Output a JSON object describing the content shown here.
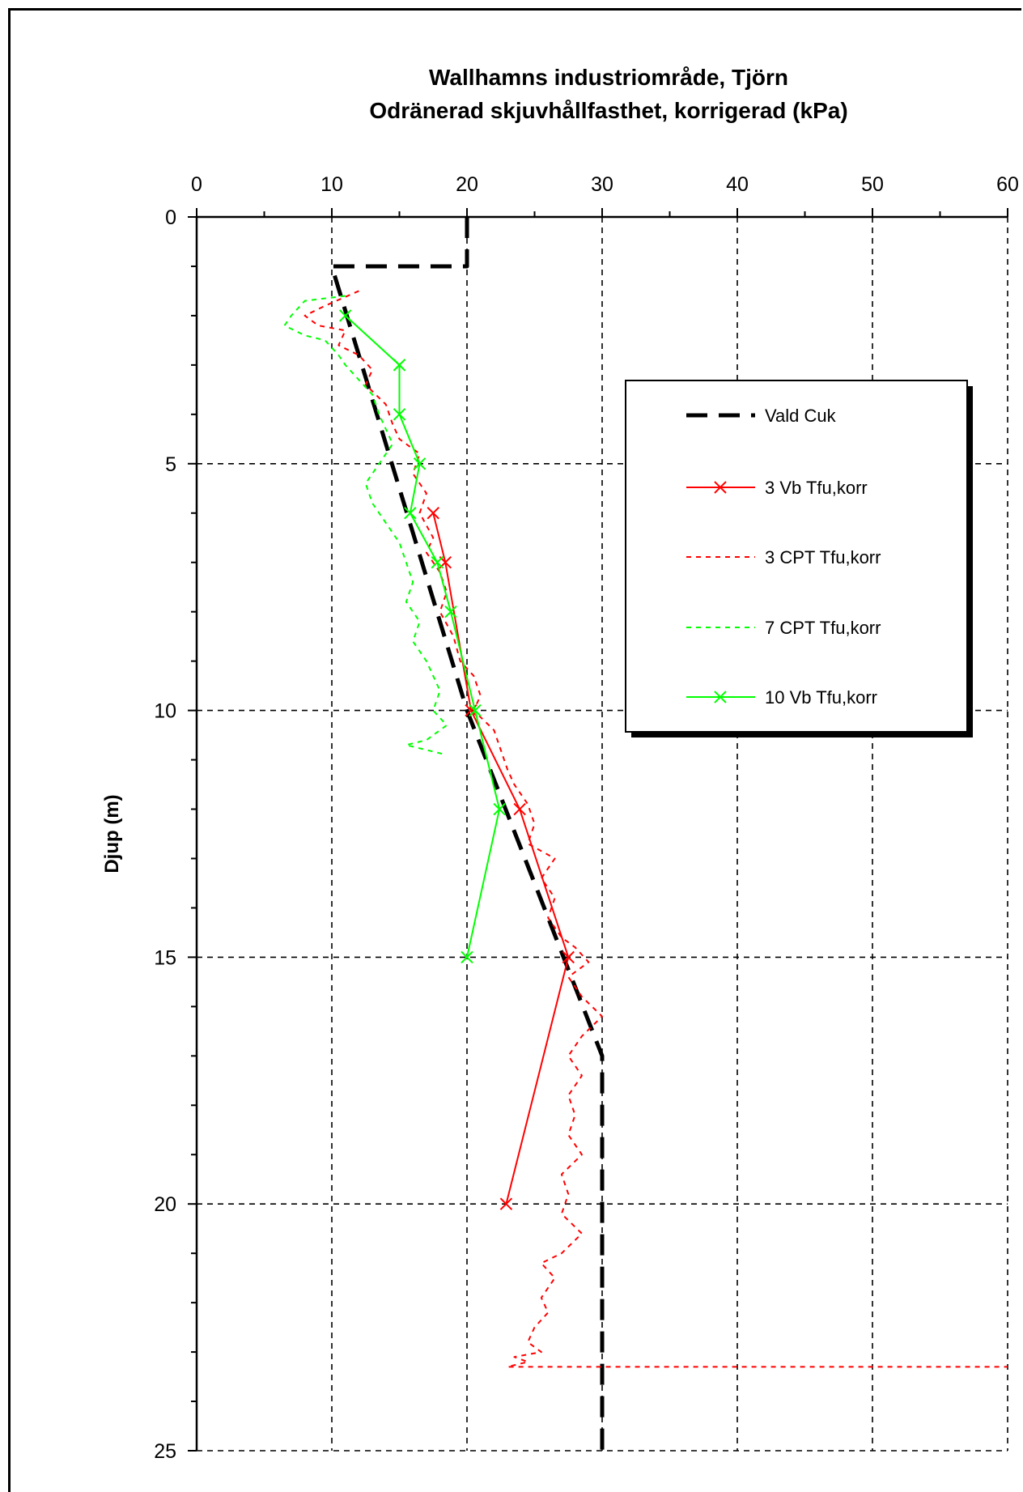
{
  "chart_data": {
    "type": "line",
    "title": "Wallhamns industriområde, Tjörn",
    "subtitle": "Odränerad skjuvhållfasthet, korrigerad (kPa)",
    "xlabel": "",
    "ylabel": "Djup (m)",
    "xlim": [
      0,
      60
    ],
    "ylim": [
      0,
      25
    ],
    "y_inverted": true,
    "x_axis_position": "top",
    "x_ticks": [
      0,
      10,
      20,
      30,
      40,
      50,
      60
    ],
    "y_ticks": [
      0,
      5,
      10,
      15,
      20,
      25
    ],
    "grid": true,
    "legend_position": "right",
    "series": [
      {
        "name": "Vald Cuk",
        "style": "dashed-thick",
        "color": "#000000",
        "markers": false,
        "points": [
          [
            20,
            0
          ],
          [
            20,
            1
          ],
          [
            10,
            1
          ],
          [
            20,
            10
          ],
          [
            30,
            17
          ],
          [
            30,
            25
          ]
        ]
      },
      {
        "name": "3 Vb Tfu,korr",
        "style": "solid",
        "color": "#ff0000",
        "markers": true,
        "points": [
          [
            17.5,
            6
          ],
          [
            18.4,
            7
          ],
          [
            20.3,
            10
          ],
          [
            23.9,
            12
          ],
          [
            27.5,
            15
          ],
          [
            22.9,
            20
          ]
        ]
      },
      {
        "name": "3 CPT Tfu,korr",
        "style": "dotted",
        "color": "#ff0000",
        "markers": false,
        "points": [
          [
            12,
            1.5
          ],
          [
            9.5,
            1.8
          ],
          [
            8,
            2
          ],
          [
            9,
            2.2
          ],
          [
            11,
            2.3
          ],
          [
            10.5,
            2.6
          ],
          [
            12,
            2.8
          ],
          [
            13,
            3.1
          ],
          [
            12.5,
            3.4
          ],
          [
            14,
            3.8
          ],
          [
            14.5,
            4.2
          ],
          [
            15,
            4.5
          ],
          [
            16.5,
            4.8
          ],
          [
            16,
            5.2
          ],
          [
            17,
            5.6
          ],
          [
            16.5,
            6
          ],
          [
            17.5,
            6.5
          ],
          [
            17,
            6.8
          ],
          [
            18,
            7.2
          ],
          [
            18.5,
            7.6
          ],
          [
            18,
            8
          ],
          [
            19,
            8.5
          ],
          [
            19.5,
            9
          ],
          [
            20.5,
            9.3
          ],
          [
            21,
            9.7
          ],
          [
            20.5,
            10
          ],
          [
            22,
            10.4
          ],
          [
            22.5,
            10.8
          ],
          [
            23,
            11.2
          ],
          [
            23.5,
            11.5
          ],
          [
            24.5,
            11.9
          ],
          [
            25,
            12.3
          ],
          [
            24.5,
            12.7
          ],
          [
            26.5,
            13
          ],
          [
            25.5,
            13.4
          ],
          [
            26.5,
            13.8
          ],
          [
            26,
            14.2
          ],
          [
            27,
            14.6
          ],
          [
            28,
            14.8
          ],
          [
            29,
            15.1
          ],
          [
            27.5,
            15.4
          ],
          [
            28.5,
            15.8
          ],
          [
            30,
            16.2
          ],
          [
            28.5,
            16.6
          ],
          [
            27.5,
            17
          ],
          [
            28.5,
            17.4
          ],
          [
            27.5,
            17.8
          ],
          [
            28,
            18.2
          ],
          [
            27.5,
            18.6
          ],
          [
            28.5,
            19
          ],
          [
            27,
            19.4
          ],
          [
            27.5,
            19.8
          ],
          [
            27,
            20.2
          ],
          [
            28.5,
            20.6
          ],
          [
            27,
            21
          ],
          [
            25.5,
            21.2
          ],
          [
            26.5,
            21.5
          ],
          [
            25.5,
            21.9
          ],
          [
            26,
            22.2
          ],
          [
            25,
            22.5
          ],
          [
            24.5,
            22.8
          ],
          [
            25.5,
            23
          ],
          [
            23.5,
            23.1
          ],
          [
            24.5,
            23.2
          ],
          [
            23,
            23.3
          ],
          [
            60,
            23.3
          ]
        ]
      },
      {
        "name": "7 CPT Tfu,korr",
        "style": "dotted",
        "color": "#00ff00",
        "markers": false,
        "points": [
          [
            11,
            1.6
          ],
          [
            8,
            1.7
          ],
          [
            7,
            2
          ],
          [
            6.5,
            2.2
          ],
          [
            8,
            2.4
          ],
          [
            9.5,
            2.5
          ],
          [
            10.5,
            2.8
          ],
          [
            11,
            3
          ],
          [
            12,
            3.3
          ],
          [
            13,
            3.6
          ],
          [
            13.5,
            4
          ],
          [
            14,
            4.3
          ],
          [
            14.5,
            4.6
          ],
          [
            13.5,
            5
          ],
          [
            12.5,
            5.4
          ],
          [
            13,
            5.8
          ],
          [
            14,
            6.2
          ],
          [
            15,
            6.6
          ],
          [
            15.5,
            7
          ],
          [
            16,
            7.4
          ],
          [
            15.5,
            7.8
          ],
          [
            16.5,
            8.2
          ],
          [
            16,
            8.6
          ],
          [
            17,
            9
          ],
          [
            17.5,
            9.3
          ],
          [
            18,
            9.6
          ],
          [
            17.5,
            10
          ],
          [
            18.5,
            10.3
          ],
          [
            17,
            10.6
          ],
          [
            15.5,
            10.7
          ],
          [
            18.5,
            10.9
          ]
        ]
      },
      {
        "name": "10 Vb Tfu,korr",
        "style": "solid",
        "color": "#00ff00",
        "markers": true,
        "points": [
          [
            11,
            2
          ],
          [
            15,
            3
          ],
          [
            15,
            4
          ],
          [
            16.5,
            5
          ],
          [
            15.8,
            6
          ],
          [
            17.8,
            7
          ],
          [
            18.8,
            8
          ],
          [
            20.6,
            10
          ],
          [
            22.4,
            12
          ],
          [
            20,
            15
          ]
        ]
      }
    ]
  }
}
